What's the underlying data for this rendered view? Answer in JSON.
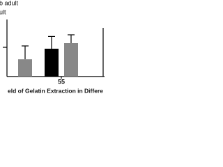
{
  "chart_data": {
    "type": "bar",
    "x_label": "eld of Gelatin Extraction in Differe",
    "categories": [
      null,
      "55"
    ],
    "series": [
      {
        "name": "b adult",
        "color": "#000000",
        "values": [
          null,
          50
        ],
        "errors": [
          null,
          22
        ]
      },
      {
        "name": "ult",
        "color": "#888888",
        "values": [
          31,
          60
        ],
        "errors": [
          24,
          15
        ]
      }
    ],
    "ylim": [
      0,
      100
    ]
  }
}
